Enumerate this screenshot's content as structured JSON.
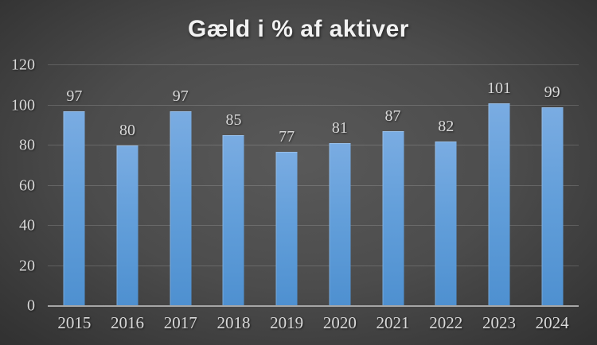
{
  "chart_data": {
    "type": "bar",
    "title": "Gæld i % af aktiver",
    "categories": [
      "2015",
      "2016",
      "2017",
      "2018",
      "2019",
      "2020",
      "2021",
      "2022",
      "2023",
      "2024"
    ],
    "values": [
      97,
      80,
      97,
      85,
      77,
      81,
      87,
      82,
      101,
      99
    ],
    "xlabel": "",
    "ylabel": "",
    "ylim": [
      0,
      120
    ],
    "yticks": [
      0,
      20,
      40,
      60,
      80,
      100,
      120
    ],
    "grid": true,
    "legend": false,
    "data_labels": true,
    "legend_position": "none"
  },
  "colors": {
    "title": "#f2f2f2",
    "tick_label": "#d9d9d9",
    "gridline": "rgba(255,255,255,0.16)",
    "axis_line": "#a6a6a6",
    "bar_top": "#7aace2",
    "bar_bottom": "#4e90d0",
    "background_center": "#595959",
    "background_edge": "#242424"
  }
}
